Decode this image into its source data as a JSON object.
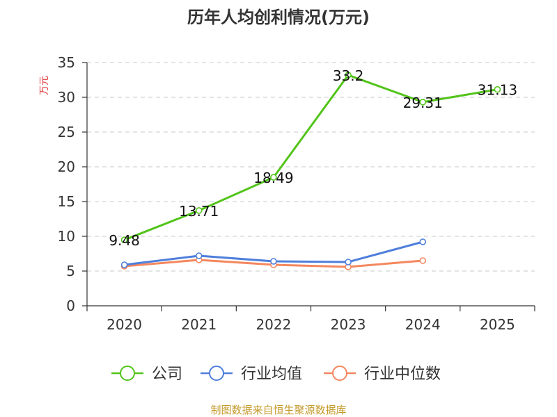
{
  "colors": {
    "company": "#52c41a",
    "industry_avg": "#4f7fdb",
    "industry_median": "#f4875e",
    "ylabel": "#e03a3a",
    "source": "#c49a2a",
    "grid": "#c8c8c8",
    "axis": "#333333"
  },
  "chart_data": {
    "type": "line",
    "title": "历年人均创利情况(万元)",
    "ylabel": "万元",
    "xlabel": "",
    "categories": [
      "2020",
      "2021",
      "2022",
      "2023",
      "2024",
      "2025"
    ],
    "ylim": [
      0,
      35
    ],
    "yticks": [
      0,
      5,
      10,
      15,
      20,
      25,
      30,
      35
    ],
    "grid": true,
    "legend_position": "bottom",
    "series": [
      {
        "name": "公司",
        "values": [
          9.48,
          13.71,
          18.49,
          33.2,
          29.31,
          31.13
        ],
        "labels": [
          "9.48",
          "13.71",
          "18.49",
          "33.2",
          "29.31",
          "31.13"
        ]
      },
      {
        "name": "行业均值",
        "values": [
          5.9,
          7.2,
          6.4,
          6.3,
          9.2,
          null
        ]
      },
      {
        "name": "行业中位数",
        "values": [
          5.7,
          6.6,
          5.9,
          5.6,
          6.5,
          null
        ]
      }
    ]
  },
  "footer": {
    "source": "制图数据来自恒生聚源数据库"
  }
}
